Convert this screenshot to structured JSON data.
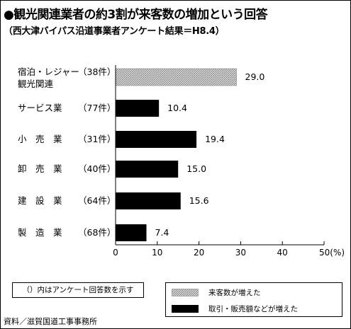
{
  "title": "●観光関連業者の約3割が来客数の増加という回答",
  "subtitle": "（西大津バイパス沿道事業者アンケート結果＝H8.4）",
  "note": "（）内はアンケート回答数を示す",
  "source": "資料／滋賀国道工事事務所",
  "colors": {
    "increase_customers": "#bdbdbd",
    "increase_sales": "#000000"
  },
  "chart_data": {
    "type": "bar",
    "orientation": "horizontal",
    "title": "●観光関連業者の約3割が来客数の増加という回答",
    "subtitle": "（西大津バイパス沿道事業者アンケート結果＝H8.4）",
    "categories": [
      {
        "name_lines": [
          "宿泊・レジャー",
          "観光関連"
        ],
        "count": "（38件）",
        "value": 29.0,
        "value_label": "29.0",
        "series": "来客数が増えた"
      },
      {
        "name_lines": [
          "サービス業"
        ],
        "count": "（77件）",
        "value": 10.4,
        "value_label": "10.4",
        "series": "取引・販売額などが増えた"
      },
      {
        "name_lines": [
          "小　売　業"
        ],
        "count": "（31件）",
        "value": 19.4,
        "value_label": "19.4",
        "series": "取引・販売額などが増えた"
      },
      {
        "name_lines": [
          "卸　売　業"
        ],
        "count": "（40件）",
        "value": 15.0,
        "value_label": "15.0",
        "series": "取引・販売額などが増えた"
      },
      {
        "name_lines": [
          "建　設　業"
        ],
        "count": "（64件）",
        "value": 15.6,
        "value_label": "15.6",
        "series": "取引・販売額などが増えた"
      },
      {
        "name_lines": [
          "製　造　業"
        ],
        "count": "（68件）",
        "value": 7.4,
        "value_label": "7.4",
        "series": "取引・販売額などが増えた"
      }
    ],
    "series": [
      {
        "name": "来客数が増えた",
        "pattern": "hatched-gray"
      },
      {
        "name": "取引・販売額などが増えた",
        "pattern": "solid-black"
      }
    ],
    "xlim": [
      0,
      50
    ],
    "x_ticks": [
      "0",
      "10",
      "20",
      "30",
      "40",
      "50(%)"
    ],
    "grid": false,
    "legend_position": "bottom-right"
  }
}
